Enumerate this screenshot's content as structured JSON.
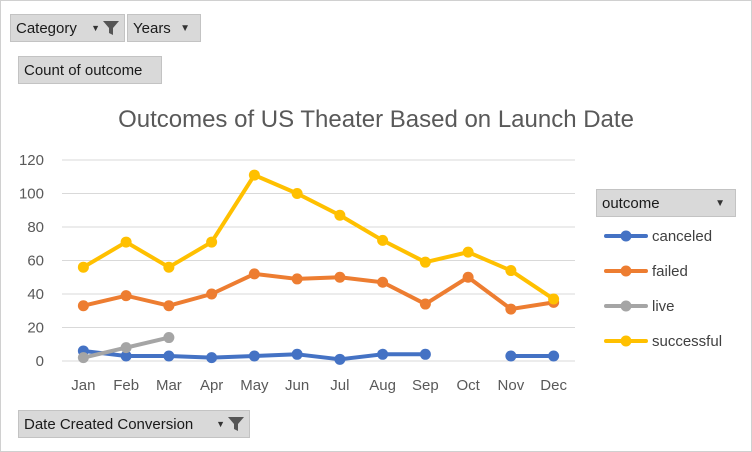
{
  "filters": {
    "category_label": "Category",
    "years_label": "Years",
    "value_field_label": "Count of outcome",
    "axis_field_label": "Date Created Conversion"
  },
  "legend": {
    "field_label": "outcome"
  },
  "colors": {
    "canceled": "#4472c4",
    "failed": "#ed7d31",
    "live": "#a5a5a5",
    "successful": "#ffc000",
    "grid": "#d9d9d9",
    "axis_text": "#595959"
  },
  "icons": [
    "funnel-filter-icon",
    "chevron-down-icon"
  ],
  "chart_data": {
    "type": "line",
    "title": "Outcomes of US Theater Based on Launch Date",
    "xlabel": "",
    "ylabel": "",
    "categories": [
      "Jan",
      "Feb",
      "Mar",
      "Apr",
      "May",
      "Jun",
      "Jul",
      "Aug",
      "Sep",
      "Oct",
      "Nov",
      "Dec"
    ],
    "ylim": [
      0,
      120
    ],
    "yticks": [
      0,
      20,
      40,
      60,
      80,
      100,
      120
    ],
    "grid": true,
    "legend_position": "right",
    "series": [
      {
        "name": "canceled",
        "values": [
          6,
          3,
          3,
          2,
          3,
          4,
          1,
          4,
          4,
          null,
          3,
          3
        ]
      },
      {
        "name": "failed",
        "values": [
          33,
          39,
          33,
          40,
          52,
          49,
          50,
          47,
          34,
          50,
          31,
          35
        ]
      },
      {
        "name": "live",
        "values": [
          2,
          8,
          14,
          null,
          null,
          null,
          null,
          null,
          null,
          null,
          null,
          null
        ]
      },
      {
        "name": "successful",
        "values": [
          56,
          71,
          56,
          71,
          111,
          100,
          87,
          72,
          59,
          65,
          54,
          37
        ]
      }
    ]
  }
}
